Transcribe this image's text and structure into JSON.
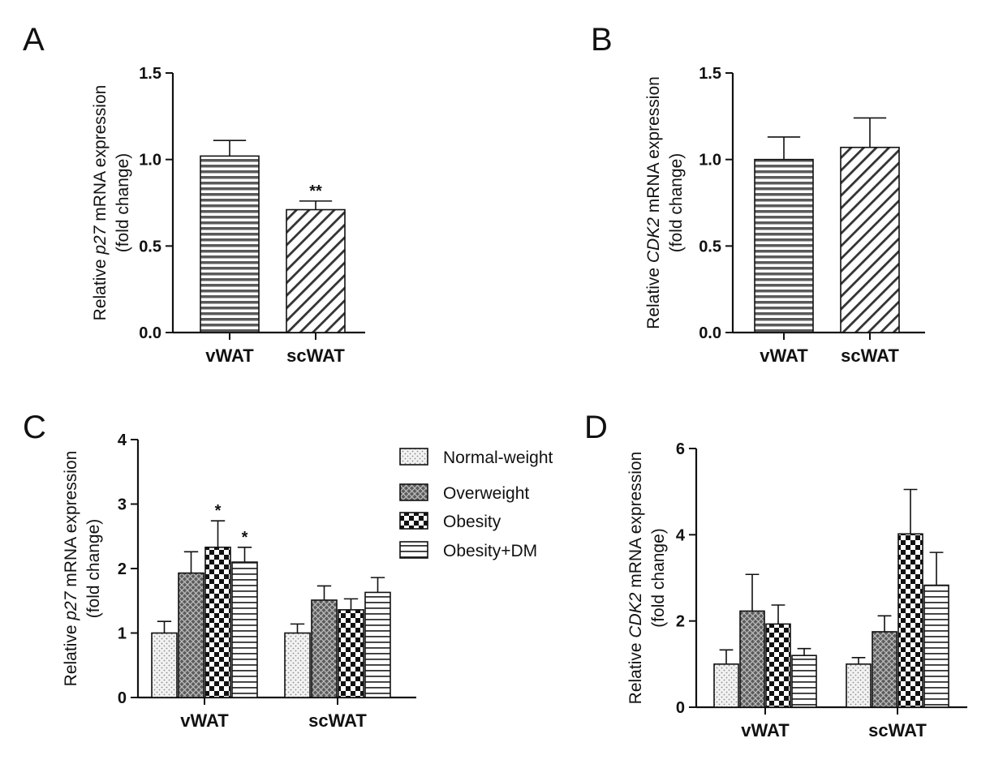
{
  "chart_data": [
    {
      "panel": "A",
      "type": "bar",
      "title": "",
      "ylabel": [
        "Relative ",
        "p27",
        " mRNA expression"
      ],
      "ylabel2": "(fold change)",
      "categories": [
        "vWAT",
        "scWAT"
      ],
      "series": [
        {
          "name": "fold change",
          "values": [
            1.02,
            0.71
          ],
          "errors": [
            0.09,
            0.05
          ],
          "patterns": [
            "hlines",
            "diag"
          ],
          "sig": [
            "",
            "**"
          ]
        }
      ],
      "ylim": [
        0,
        1.5
      ],
      "yticks": [
        "0.0",
        "0.5",
        "1.0",
        "1.5"
      ]
    },
    {
      "panel": "B",
      "type": "bar",
      "title": "",
      "ylabel": [
        "Relative ",
        "CDK2",
        " mRNA expression"
      ],
      "ylabel2": "(fold change)",
      "categories": [
        "vWAT",
        "scWAT"
      ],
      "series": [
        {
          "name": "fold change",
          "values": [
            1.0,
            1.07
          ],
          "errors": [
            0.13,
            0.17
          ],
          "patterns": [
            "hlines",
            "diag"
          ],
          "sig": [
            "",
            ""
          ]
        }
      ],
      "ylim": [
        0,
        1.5
      ],
      "yticks": [
        "0.0",
        "0.5",
        "1.0",
        "1.5"
      ]
    },
    {
      "panel": "C",
      "type": "bar",
      "title": "",
      "ylabel": [
        "Relative ",
        "p27",
        " mRNA expression"
      ],
      "ylabel2": "(fold change)",
      "categories": [
        "vWAT",
        "scWAT"
      ],
      "series": [
        {
          "name": "Normal-weight",
          "pattern": "dots",
          "values": [
            1.0,
            1.0
          ],
          "errors": [
            0.18,
            0.14
          ],
          "sig": [
            "",
            ""
          ]
        },
        {
          "name": "Overweight",
          "pattern": "cross",
          "values": [
            1.93,
            1.51
          ],
          "errors": [
            0.33,
            0.22
          ],
          "sig": [
            "",
            ""
          ]
        },
        {
          "name": "Obesity",
          "pattern": "checker",
          "values": [
            2.33,
            1.36
          ],
          "errors": [
            0.41,
            0.17
          ],
          "sig": [
            "*",
            ""
          ]
        },
        {
          "name": "Obesity+DM",
          "pattern": "hlines",
          "values": [
            2.1,
            1.63
          ],
          "errors": [
            0.23,
            0.23
          ],
          "sig": [
            "*",
            ""
          ]
        }
      ],
      "ylim": [
        0,
        4
      ],
      "yticks": [
        "0",
        "1",
        "2",
        "3",
        "4"
      ],
      "legend": [
        "Normal-weight",
        "Overweight",
        "Obesity",
        "Obesity+DM"
      ]
    },
    {
      "panel": "D",
      "type": "bar",
      "title": "",
      "ylabel": [
        "Relative ",
        "CDK2",
        " mRNA expression"
      ],
      "ylabel2": "(fold change)",
      "categories": [
        "vWAT",
        "scWAT"
      ],
      "series": [
        {
          "name": "Normal-weight",
          "pattern": "dots",
          "values": [
            1.0,
            1.0
          ],
          "errors": [
            0.33,
            0.15
          ],
          "sig": [
            "",
            ""
          ]
        },
        {
          "name": "Overweight",
          "pattern": "cross",
          "values": [
            2.23,
            1.75
          ],
          "errors": [
            0.85,
            0.37
          ],
          "sig": [
            "",
            ""
          ]
        },
        {
          "name": "Obesity",
          "pattern": "checker",
          "values": [
            1.93,
            4.02
          ],
          "errors": [
            0.44,
            1.03
          ],
          "sig": [
            "",
            ""
          ]
        },
        {
          "name": "Obesity+DM",
          "pattern": "hlines",
          "values": [
            1.2,
            2.83
          ],
          "errors": [
            0.16,
            0.76
          ],
          "sig": [
            "",
            ""
          ]
        }
      ],
      "ylim": [
        0,
        6
      ],
      "yticks": [
        "0",
        "2",
        "4",
        "6"
      ]
    }
  ]
}
